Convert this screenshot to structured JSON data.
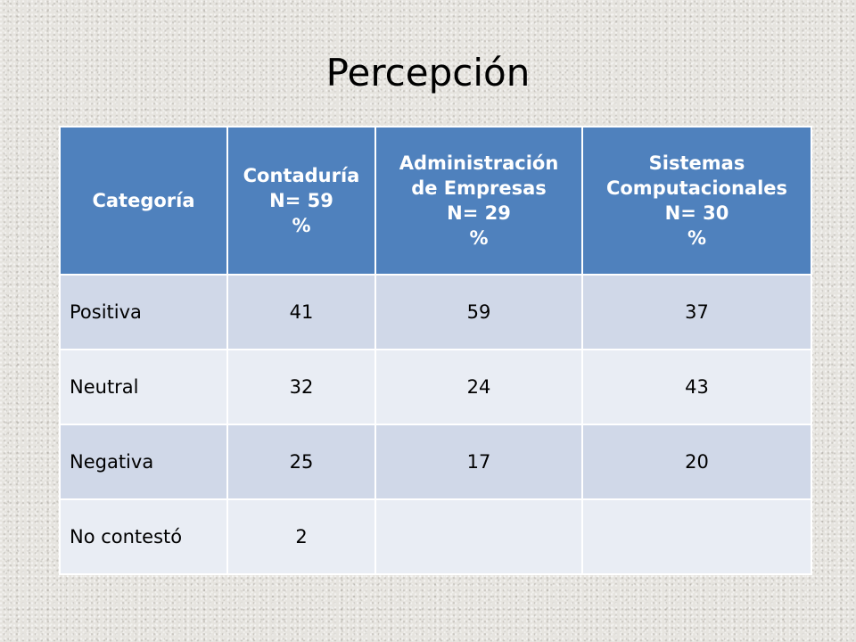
{
  "title": "Percepción",
  "table": {
    "headers": [
      {
        "lines": [
          "Categoría"
        ]
      },
      {
        "lines": [
          "Contaduría",
          "N= 59",
          "%"
        ]
      },
      {
        "lines": [
          "Administración",
          "de Empresas",
          "N= 29",
          "%"
        ]
      },
      {
        "lines": [
          "Sistemas",
          "Computacionales",
          "N= 30",
          "%"
        ]
      }
    ],
    "rows": [
      {
        "category": "Positiva",
        "contaduria": "41",
        "administracion": "59",
        "sistemas": "37"
      },
      {
        "category": "Neutral",
        "contaduria": "32",
        "administracion": "24",
        "sistemas": "43"
      },
      {
        "category": "Negativa",
        "contaduria": "25",
        "administracion": "17",
        "sistemas": "20"
      },
      {
        "category": "No contestó",
        "contaduria": "2",
        "administracion": "",
        "sistemas": ""
      }
    ]
  },
  "colors": {
    "header_bg": "#4f81bd",
    "row_odd_bg": "#d0d8e8",
    "row_even_bg": "#e9edf4"
  }
}
